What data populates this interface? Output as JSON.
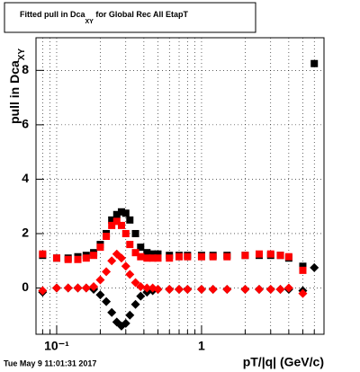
{
  "chart_data": {
    "type": "scatter",
    "title": "Fitted pull in Dca",
    "title_sub": "XY",
    "title_rest": " for Global Rec All EtapT",
    "ylabel": "pull in Dca",
    "ylabel_sub": "XY",
    "xlabel": "pT/|q| (GeV/c)",
    "footer": "Tue May  9 11:01:31 2017",
    "xlog": true,
    "grid": true,
    "xlim": [
      0.072,
      7.0
    ],
    "ylim": [
      -1.7,
      9.2
    ],
    "xticks": [
      {
        "value": 0.1,
        "label": "10⁻¹"
      },
      1
    ],
    "xminorticks": [
      0.08,
      0.09,
      0.2,
      0.3,
      0.4,
      0.5,
      0.6,
      0.7,
      0.8,
      0.9,
      2,
      3,
      4,
      5,
      6,
      7
    ],
    "yticks": [
      0,
      2,
      4,
      6,
      8
    ],
    "x": [
      0.08,
      0.1,
      0.12,
      0.14,
      0.16,
      0.18,
      0.2,
      0.22,
      0.24,
      0.26,
      0.28,
      0.3,
      0.32,
      0.35,
      0.38,
      0.42,
      0.46,
      0.5,
      0.6,
      0.7,
      0.8,
      1.0,
      1.2,
      1.5,
      2.0,
      2.5,
      3.0,
      3.5,
      4.0,
      5.0,
      6.0
    ],
    "series": [
      {
        "color": "#000000",
        "marker": "square",
        "values": [
          1.2,
          1.1,
          1.1,
          1.15,
          1.2,
          1.3,
          1.6,
          2.0,
          2.5,
          2.7,
          2.8,
          2.75,
          2.5,
          2.0,
          1.5,
          1.3,
          1.25,
          1.25,
          1.2,
          1.2,
          1.2,
          1.2,
          1.2,
          1.2,
          1.2,
          1.2,
          1.2,
          1.2,
          1.1,
          0.8,
          8.25
        ]
      },
      {
        "color": "#ff0000",
        "marker": "square",
        "values": [
          1.25,
          1.1,
          1.05,
          1.05,
          1.1,
          1.2,
          1.5,
          1.9,
          2.3,
          2.45,
          2.3,
          2.0,
          1.6,
          1.3,
          1.15,
          1.1,
          1.1,
          1.1,
          1.1,
          1.15,
          1.15,
          1.15,
          1.15,
          1.15,
          1.2,
          1.25,
          1.25,
          1.2,
          1.15,
          0.65,
          null
        ]
      },
      {
        "color": "#000000",
        "marker": "diamond",
        "values": [
          -0.15,
          0,
          0,
          0,
          0,
          -0.05,
          -0.25,
          -0.5,
          -0.9,
          -1.25,
          -1.4,
          -1.3,
          -1.0,
          -0.6,
          -0.3,
          -0.15,
          -0.1,
          -0.05,
          -0.05,
          -0.05,
          -0.05,
          -0.05,
          -0.05,
          -0.05,
          -0.05,
          -0.05,
          -0.05,
          -0.05,
          -0.05,
          -0.1,
          0.75
        ]
      },
      {
        "color": "#ff0000",
        "marker": "diamond",
        "values": [
          -0.1,
          0,
          0,
          0,
          0,
          0.05,
          0.3,
          0.6,
          1.0,
          1.25,
          1.1,
          0.8,
          0.5,
          0.2,
          0.05,
          0,
          0,
          -0.05,
          -0.05,
          -0.05,
          -0.05,
          -0.05,
          -0.05,
          -0.05,
          -0.05,
          -0.05,
          -0.05,
          -0.05,
          0,
          -0.2,
          null
        ]
      }
    ]
  }
}
